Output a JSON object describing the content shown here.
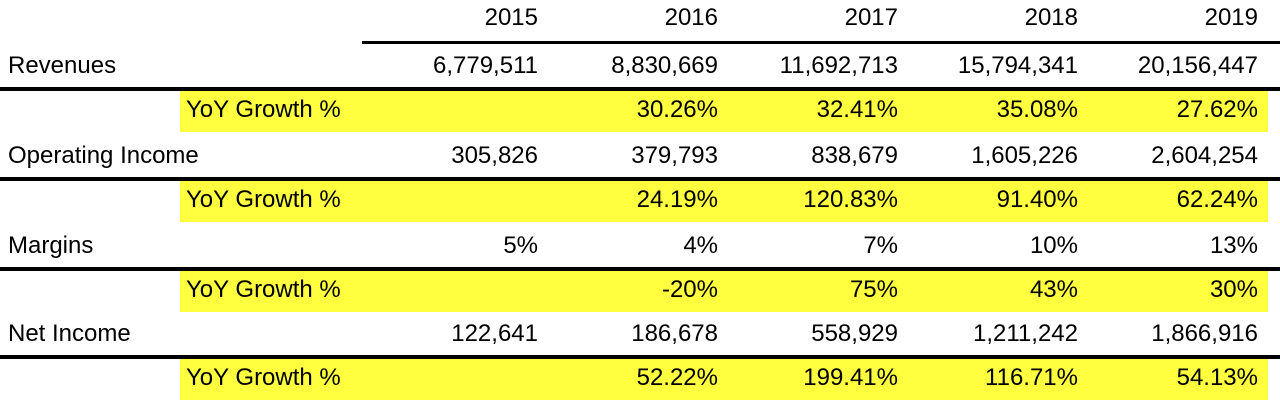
{
  "colors": {
    "highlight": "#ffff40",
    "text": "#000000",
    "rule": "#000000"
  },
  "years": [
    "2015",
    "2016",
    "2017",
    "2018",
    "2019"
  ],
  "rows": [
    {
      "label": "Revenues",
      "growth": false,
      "values": [
        "6,779,511",
        "8,830,669",
        "11,692,713",
        "15,794,341",
        "20,156,447"
      ]
    },
    {
      "label": "YoY Growth %",
      "growth": true,
      "values": [
        "",
        "30.26%",
        "32.41%",
        "35.08%",
        "27.62%"
      ]
    },
    {
      "label": "Operating Income",
      "growth": false,
      "values": [
        "305,826",
        "379,793",
        "838,679",
        "1,605,226",
        "2,604,254"
      ]
    },
    {
      "label": "YoY Growth %",
      "growth": true,
      "values": [
        "",
        "24.19%",
        "120.83%",
        "91.40%",
        "62.24%"
      ]
    },
    {
      "label": "Margins",
      "growth": false,
      "values": [
        "5%",
        "4%",
        "7%",
        "10%",
        "13%"
      ]
    },
    {
      "label": "YoY Growth %",
      "growth": true,
      "values": [
        "",
        "-20%",
        "75%",
        "43%",
        "30%"
      ]
    },
    {
      "label": "Net Income",
      "growth": false,
      "values": [
        "122,641",
        "186,678",
        "558,929",
        "1,211,242",
        "1,866,916"
      ]
    },
    {
      "label": "YoY Growth %",
      "growth": true,
      "values": [
        "",
        "52.22%",
        "199.41%",
        "116.71%",
        "54.13%"
      ]
    }
  ]
}
